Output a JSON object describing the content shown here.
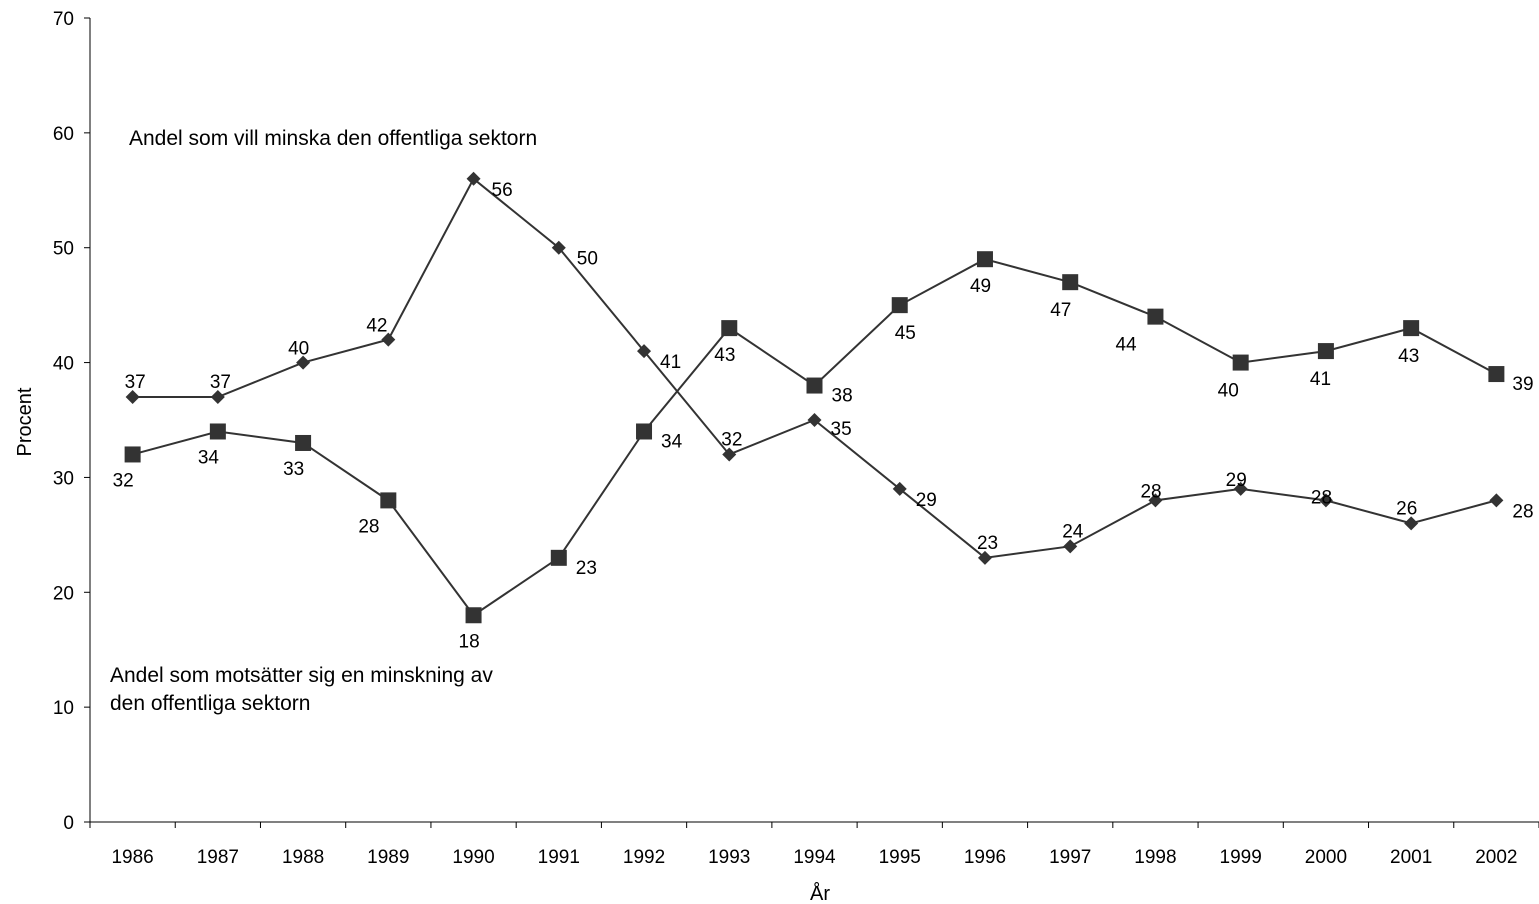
{
  "chart_data": {
    "type": "line",
    "categories": [
      "1986",
      "1987",
      "1988",
      "1989",
      "1990",
      "1991",
      "1992",
      "1993",
      "1994",
      "1995",
      "1996",
      "1997",
      "1998",
      "1999",
      "2000",
      "2001",
      "2002"
    ],
    "x": [
      1986,
      1987,
      1988,
      1989,
      1990,
      1991,
      1992,
      1993,
      1994,
      1995,
      1996,
      1997,
      1998,
      1999,
      2000,
      2001,
      2002
    ],
    "series": [
      {
        "marker": "diamond",
        "values": [
          37,
          37,
          40,
          42,
          56,
          50,
          41,
          32,
          35,
          29,
          23,
          24,
          28,
          29,
          28,
          26,
          28
        ]
      },
      {
        "marker": "square",
        "values": [
          32,
          34,
          33,
          28,
          18,
          23,
          34,
          43,
          38,
          45,
          49,
          47,
          44,
          40,
          41,
          43,
          39
        ]
      }
    ],
    "xlabel": "År",
    "ylabel": "Procent",
    "ylim": [
      0,
      70
    ],
    "yticks": [
      0,
      10,
      20,
      30,
      40,
      50,
      60,
      70
    ],
    "grid": false,
    "colors": {
      "line": "#333333",
      "marker": "#333333",
      "axis": "#000000"
    },
    "annotations": [
      {
        "lines": [
          "Andel som vill minska den offentliga sektorn"
        ]
      },
      {
        "lines": [
          "Andel som motsätter sig en minskning av",
          "den offentliga sektorn"
        ]
      }
    ]
  }
}
